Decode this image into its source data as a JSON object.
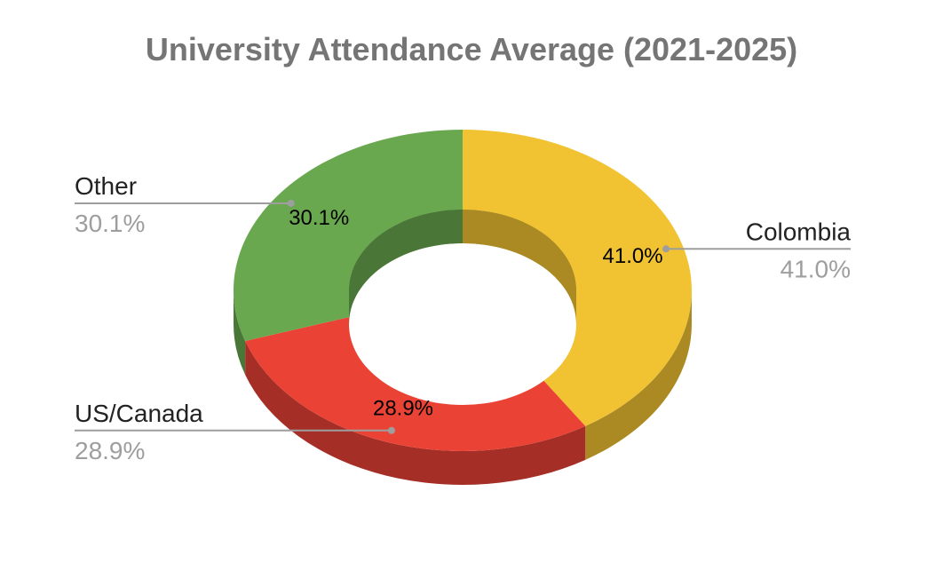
{
  "chart_data": {
    "type": "pie",
    "variant": "3d-donut",
    "title": "University Attendance Average (2021-2025)",
    "slices": [
      {
        "name": "Colombia",
        "value": 41.0,
        "percent_label": "41.0%",
        "legend_pct": "41.0%",
        "color": "#F1C232",
        "side_color": "#AB8A23"
      },
      {
        "name": "US/Canada",
        "value": 28.9,
        "percent_label": "28.9%",
        "legend_pct": "28.9%",
        "color": "#EA4335",
        "side_color": "#A52E26"
      },
      {
        "name": "Other",
        "value": 30.1,
        "percent_label": "30.1%",
        "legend_pct": "30.1%",
        "color": "#6AA84F",
        "side_color": "#4A7637"
      }
    ],
    "legend_placement": "labels-outside",
    "leader_line_color": "#9e9e9e"
  }
}
